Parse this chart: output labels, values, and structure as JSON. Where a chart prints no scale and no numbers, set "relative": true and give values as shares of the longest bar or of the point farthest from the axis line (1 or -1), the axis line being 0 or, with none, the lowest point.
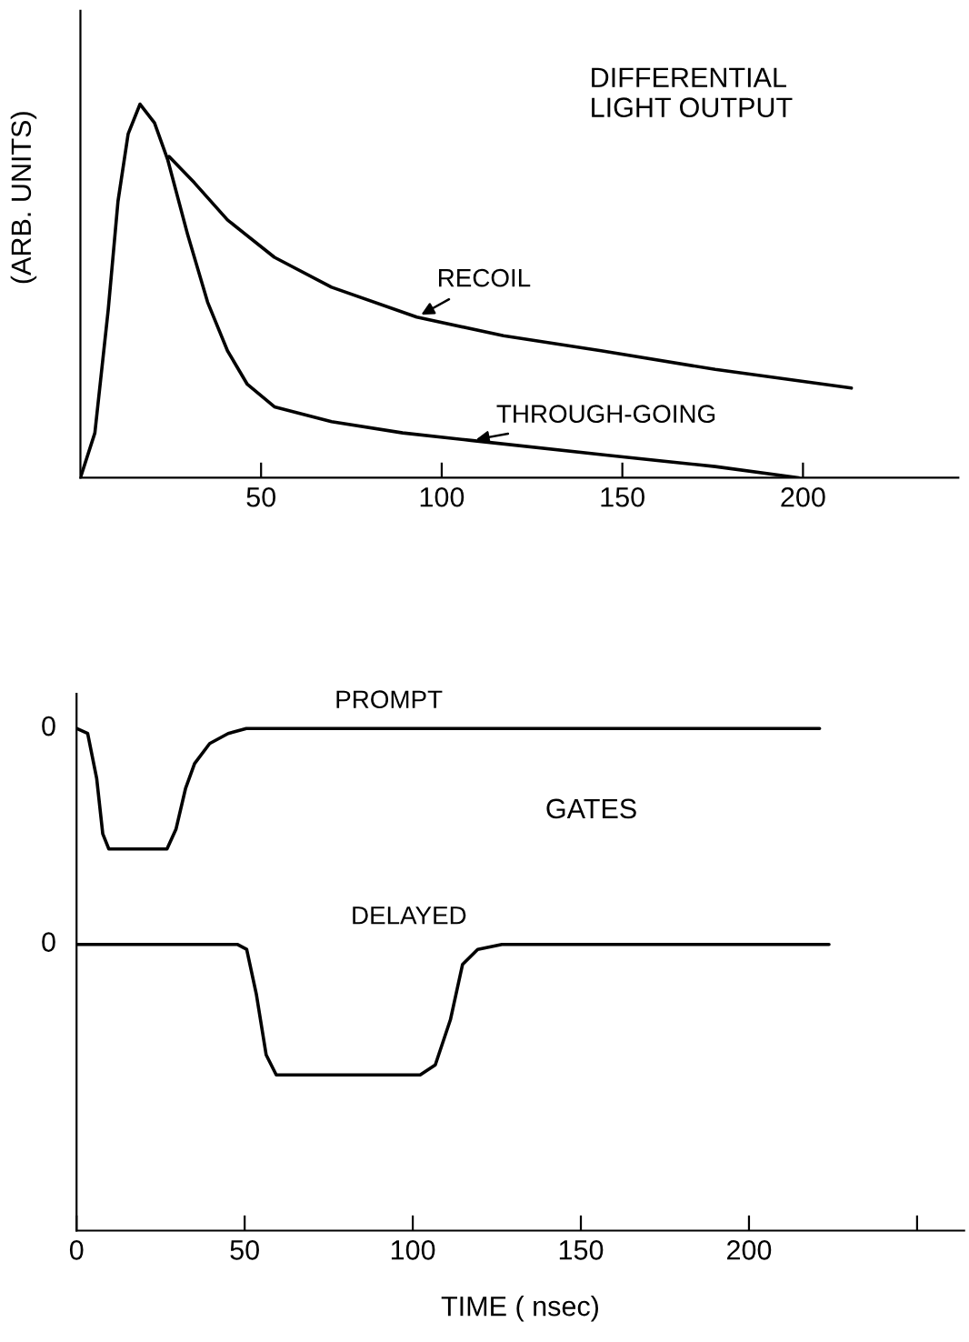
{
  "chart_data": [
    {
      "type": "line",
      "title": "DIFFERENTIAL\nLIGHT OUTPUT",
      "ylabel": "(ARB. UNITS)",
      "relative": true,
      "legend": false,
      "grid": false,
      "marker": "none",
      "line_style": "solid",
      "xlim": [
        0,
        243
      ],
      "xticks": [
        50,
        100,
        150,
        200
      ],
      "series": [
        {
          "name": "THROUGH-GOING",
          "color": "#000000",
          "x": [
            0,
            4.0,
            7.7,
            10.4,
            13.2,
            16.5,
            20.5,
            24.2,
            29.7,
            35.2,
            40.7,
            46.2,
            53.7,
            69.5,
            89.2,
            108.1,
            146,
            175.7,
            198.8
          ],
          "values": [
            0,
            0.12,
            0.45,
            0.74,
            0.92,
            1.0,
            0.95,
            0.85,
            0.65,
            0.47,
            0.34,
            0.25,
            0.19,
            0.15,
            0.12,
            0.1,
            0.06,
            0.03,
            0
          ]
        },
        {
          "name": "RECOIL",
          "color": "#000000",
          "x": [
            24.5,
            31.5,
            40.7,
            53.7,
            69.5,
            93.1,
            117.1,
            144.1,
            175.7,
            213.4
          ],
          "values": [
            0.86,
            0.79,
            0.69,
            0.59,
            0.51,
            0.43,
            0.38,
            0.34,
            0.29,
            0.24
          ]
        }
      ]
    },
    {
      "type": "line",
      "title": "GATES",
      "xlabel": "TIME ( nsec)",
      "relative": true,
      "legend": false,
      "grid": false,
      "marker": "none",
      "line_style": "solid",
      "xlim": [
        0,
        264
      ],
      "xticks": [
        0,
        50,
        100,
        150,
        200,
        {
          "value": 250,
          "label": null
        }
      ],
      "annotations": [
        {
          "text": "0",
          "x": 0,
          "y": 1.0
        },
        {
          "text": "0",
          "x": 0,
          "y": 0.57
        }
      ],
      "series": [
        {
          "name": "PROMPT",
          "color": "#000000",
          "x": [
            0,
            3.3,
            6.0,
            7.8,
            9.6,
            26.9,
            29.6,
            32.4,
            35.1,
            39.6,
            45.1,
            50.5,
            221
          ],
          "values": [
            1.0,
            0.99,
            0.9,
            0.79,
            0.76,
            0.76,
            0.8,
            0.88,
            0.93,
            0.97,
            0.99,
            1.0,
            1.0
          ]
        },
        {
          "name": "DELAYED",
          "color": "#000000",
          "x": [
            0,
            47.8,
            50.6,
            53.5,
            56.4,
            59.4,
            102.2,
            106.7,
            111.2,
            114.8,
            119.3,
            126.5,
            223.8
          ],
          "values": [
            0.57,
            0.57,
            0.56,
            0.47,
            0.35,
            0.31,
            0.31,
            0.33,
            0.42,
            0.53,
            0.56,
            0.57,
            0.57
          ]
        }
      ]
    }
  ]
}
